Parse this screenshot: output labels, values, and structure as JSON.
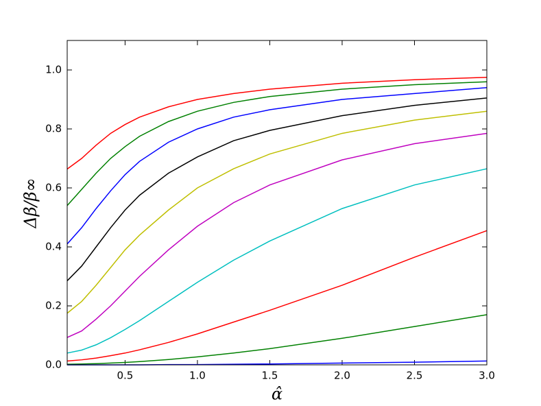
{
  "chart_data": {
    "type": "line",
    "x_label": "α̂",
    "y_label": "Δβ/β∞",
    "x": [
      0.1,
      0.2,
      0.3,
      0.4,
      0.5,
      0.6,
      0.8,
      1.0,
      1.25,
      1.5,
      2.0,
      2.5,
      3.0
    ],
    "series": [
      {
        "color": "#ff0000",
        "values": [
          0.664,
          0.7,
          0.745,
          0.785,
          0.815,
          0.84,
          0.875,
          0.9,
          0.92,
          0.935,
          0.955,
          0.967,
          0.975
        ]
      },
      {
        "color": "#008000",
        "values": [
          0.54,
          0.595,
          0.65,
          0.7,
          0.74,
          0.775,
          0.825,
          0.86,
          0.89,
          0.91,
          0.935,
          0.95,
          0.96
        ]
      },
      {
        "color": "#0000ff",
        "values": [
          0.41,
          0.465,
          0.53,
          0.59,
          0.645,
          0.69,
          0.755,
          0.8,
          0.84,
          0.865,
          0.9,
          0.92,
          0.94
        ]
      },
      {
        "color": "#000000",
        "values": [
          0.285,
          0.335,
          0.4,
          0.465,
          0.525,
          0.575,
          0.65,
          0.705,
          0.76,
          0.795,
          0.845,
          0.88,
          0.905
        ]
      },
      {
        "color": "#bfbf00",
        "values": [
          0.175,
          0.215,
          0.27,
          0.33,
          0.39,
          0.44,
          0.525,
          0.6,
          0.665,
          0.715,
          0.785,
          0.83,
          0.86
        ]
      },
      {
        "color": "#bf00bf",
        "values": [
          0.093,
          0.115,
          0.155,
          0.2,
          0.25,
          0.3,
          0.39,
          0.47,
          0.55,
          0.61,
          0.695,
          0.75,
          0.785
        ]
      },
      {
        "color": "#00bfbf",
        "values": [
          0.04,
          0.05,
          0.068,
          0.092,
          0.12,
          0.15,
          0.215,
          0.28,
          0.355,
          0.42,
          0.53,
          0.61,
          0.665
        ]
      },
      {
        "color": "#ff0000",
        "values": [
          0.013,
          0.017,
          0.023,
          0.031,
          0.04,
          0.051,
          0.076,
          0.105,
          0.145,
          0.185,
          0.27,
          0.365,
          0.455
        ]
      },
      {
        "color": "#008000",
        "values": [
          0.002,
          0.003,
          0.004,
          0.006,
          0.008,
          0.011,
          0.018,
          0.027,
          0.04,
          0.055,
          0.09,
          0.13,
          0.17
        ]
      },
      {
        "color": "#0000ff",
        "values": [
          0,
          0,
          0,
          0,
          0,
          0,
          0.001,
          0.001,
          0.002,
          0.003,
          0.006,
          0.009,
          0.013
        ]
      }
    ],
    "xlim": [
      0.1,
      3.0
    ],
    "xticks": [
      0.5,
      {
        "value": 1,
        "label": "1.0"
      },
      1.5,
      {
        "value": 2,
        "label": "2.0"
      },
      2.5,
      {
        "value": 3,
        "label": "3.0"
      }
    ],
    "ylim": [
      0,
      1.1
    ],
    "yticks": [
      {
        "value": 0,
        "label": "0.0"
      },
      0.2,
      0.4,
      0.6,
      0.8,
      {
        "value": 1,
        "label": "1.0"
      }
    ],
    "grid": false
  }
}
